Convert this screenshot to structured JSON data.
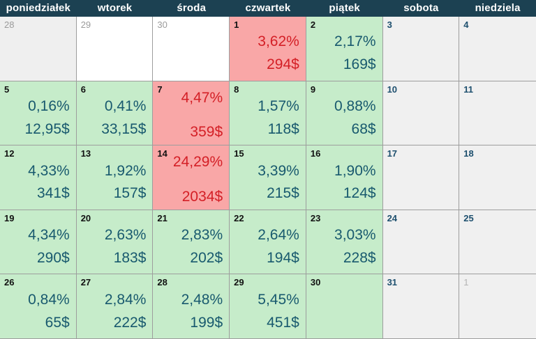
{
  "header": {
    "days": [
      "poniedziałek",
      "wtorek",
      "środa",
      "czwartek",
      "piątek",
      "sobota",
      "niedziela"
    ]
  },
  "colors": {
    "header_bg": "#1c4152",
    "header_text": "#ffffff",
    "gain_bg": "#c6ecca",
    "gain_text": "#18596e",
    "loss_bg": "#f9a7a7",
    "loss_text": "#d41f26",
    "weekend_bg": "#f0f0f0",
    "weekend_day": "#1d4f6e",
    "prev_shaded_bg": "#efefef",
    "prev_bg": "#ffffff",
    "prev_day": "#9b9b9b",
    "next_day": "#b3b3b3",
    "day_number": "#111111",
    "border": "#9d9d9d"
  },
  "weeks": [
    [
      {
        "day": "28",
        "status": "prev-shaded"
      },
      {
        "day": "29",
        "status": "prev"
      },
      {
        "day": "30",
        "status": "prev"
      },
      {
        "day": "1",
        "status": "loss",
        "pct": "3,62%",
        "usd": "294$"
      },
      {
        "day": "2",
        "status": "gain",
        "pct": "2,17%",
        "usd": "169$"
      },
      {
        "day": "3",
        "status": "weekend"
      },
      {
        "day": "4",
        "status": "weekend"
      }
    ],
    [
      {
        "day": "5",
        "status": "gain",
        "pct": "0,16%",
        "usd": "12,95$"
      },
      {
        "day": "6",
        "status": "gain",
        "pct": "0,41%",
        "usd": "33,15$"
      },
      {
        "day": "7",
        "status": "loss",
        "spread": true,
        "pct": "4,47%",
        "usd": "359$"
      },
      {
        "day": "8",
        "status": "gain",
        "pct": "1,57%",
        "usd": "118$"
      },
      {
        "day": "9",
        "status": "gain",
        "pct": "0,88%",
        "usd": "68$"
      },
      {
        "day": "10",
        "status": "weekend"
      },
      {
        "day": "11",
        "status": "weekend"
      }
    ],
    [
      {
        "day": "12",
        "status": "gain",
        "pct": "4,33%",
        "usd": "341$"
      },
      {
        "day": "13",
        "status": "gain",
        "pct": "1,92%",
        "usd": "157$"
      },
      {
        "day": "14",
        "status": "loss",
        "spread": true,
        "pct": "24,29%",
        "usd": "2034$"
      },
      {
        "day": "15",
        "status": "gain",
        "pct": "3,39%",
        "usd": "215$"
      },
      {
        "day": "16",
        "status": "gain",
        "pct": "1,90%",
        "usd": "124$"
      },
      {
        "day": "17",
        "status": "weekend"
      },
      {
        "day": "18",
        "status": "weekend"
      }
    ],
    [
      {
        "day": "19",
        "status": "gain",
        "pct": "4,34%",
        "usd": "290$"
      },
      {
        "day": "20",
        "status": "gain",
        "pct": "2,63%",
        "usd": "183$"
      },
      {
        "day": "21",
        "status": "gain",
        "pct": "2,83%",
        "usd": "202$"
      },
      {
        "day": "22",
        "status": "gain",
        "pct": "2,64%",
        "usd": "194$"
      },
      {
        "day": "23",
        "status": "gain",
        "pct": "3,03%",
        "usd": "228$"
      },
      {
        "day": "24",
        "status": "weekend"
      },
      {
        "day": "25",
        "status": "weekend"
      }
    ],
    [
      {
        "day": "26",
        "status": "gain",
        "pct": "0,84%",
        "usd": "65$"
      },
      {
        "day": "27",
        "status": "gain",
        "pct": "2,84%",
        "usd": "222$"
      },
      {
        "day": "28",
        "status": "gain",
        "pct": "2,48%",
        "usd": "199$"
      },
      {
        "day": "29",
        "status": "gain",
        "pct": "5,45%",
        "usd": "451$"
      },
      {
        "day": "30",
        "status": "gain"
      },
      {
        "day": "31",
        "status": "weekend"
      },
      {
        "day": "1",
        "status": "next"
      }
    ]
  ]
}
